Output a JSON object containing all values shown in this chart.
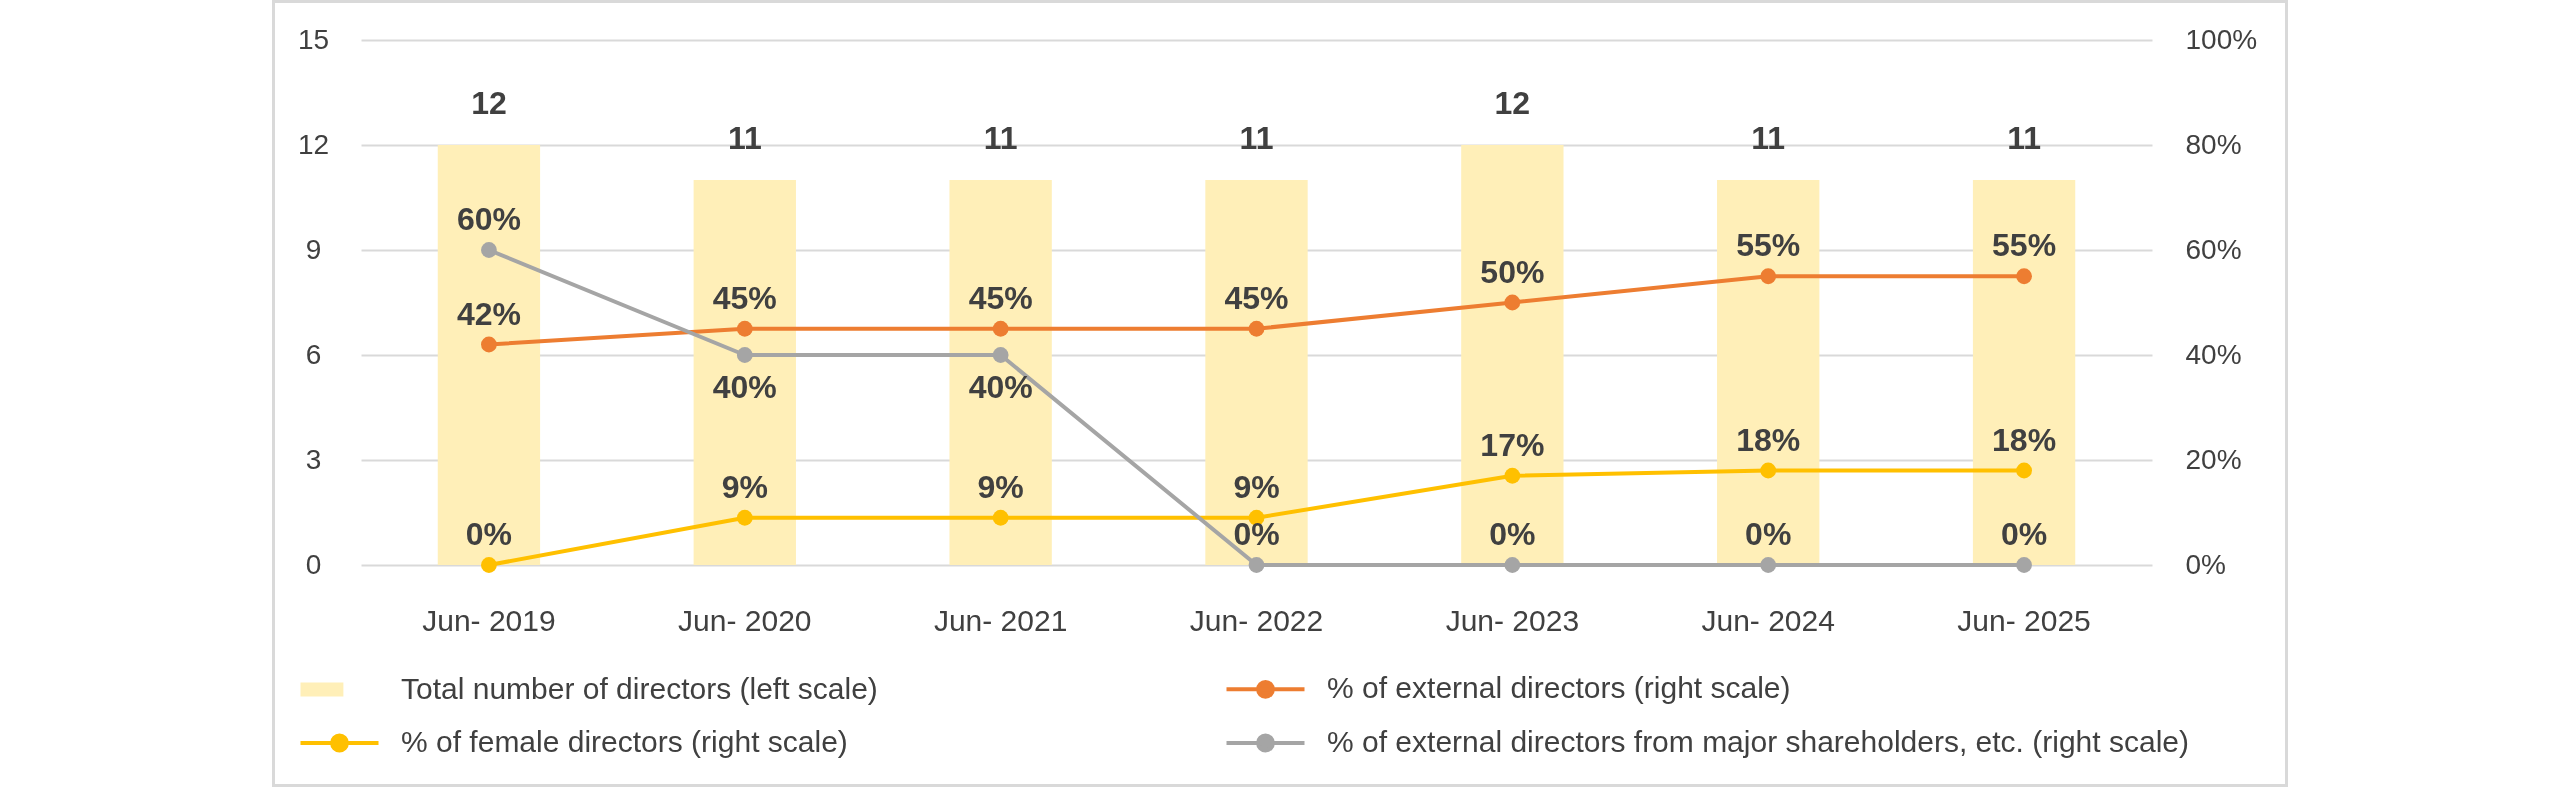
{
  "chart_data": {
    "type": "bar",
    "categories": [
      "Jun- 2019",
      "Jun- 2020",
      "Jun- 2021",
      "Jun- 2022",
      "Jun- 2023",
      "Jun- 2024",
      "Jun- 2025"
    ],
    "series": [
      {
        "name": "Total number of directors (left scale)",
        "color": "#ffefb8",
        "values": [
          12,
          11,
          11,
          11,
          12,
          11,
          11
        ],
        "value_labels": [
          "12",
          "11",
          "11",
          "11",
          "12",
          "11",
          "11"
        ]
      },
      {
        "name": "% of external directors (right scale)",
        "type": "line",
        "axis": "y2",
        "color": "#ed7d31",
        "values": [
          42,
          45,
          45,
          45,
          50,
          55,
          55
        ],
        "value_labels": [
          "42%",
          "45%",
          "45%",
          "45%",
          "50%",
          "55%",
          "55%"
        ]
      },
      {
        "name": "% of female directors (right scale)",
        "type": "line",
        "axis": "y2",
        "color": "#ffc000",
        "values": [
          0,
          9,
          9,
          9,
          17,
          18,
          18
        ],
        "value_labels": [
          "0%",
          "9%",
          "9%",
          "9%",
          "17%",
          "18%",
          "18%"
        ]
      },
      {
        "name": "% of external directors from major shareholders, etc. (right scale)",
        "type": "line",
        "axis": "y2",
        "color": "#a5a5a5",
        "values": [
          60,
          40,
          40,
          0,
          0,
          0,
          0
        ],
        "value_labels": [
          "60%",
          "40%",
          "40%",
          "0%",
          "0%",
          "0%",
          "0%"
        ]
      }
    ],
    "ylim": [
      0,
      15
    ],
    "yticks": [
      0,
      3,
      6,
      9,
      12,
      15
    ],
    "y2lim": [
      0,
      100
    ],
    "y2ticks": [
      {
        "value": 0,
        "label": "0%"
      },
      {
        "value": 20,
        "label": "20%"
      },
      {
        "value": 40,
        "label": "40%"
      },
      {
        "value": 60,
        "label": "60%"
      },
      {
        "value": 80,
        "label": "80%"
      },
      {
        "value": 100,
        "label": "100%"
      }
    ],
    "grid": "y",
    "legend": "bottom",
    "marker": "circle"
  }
}
